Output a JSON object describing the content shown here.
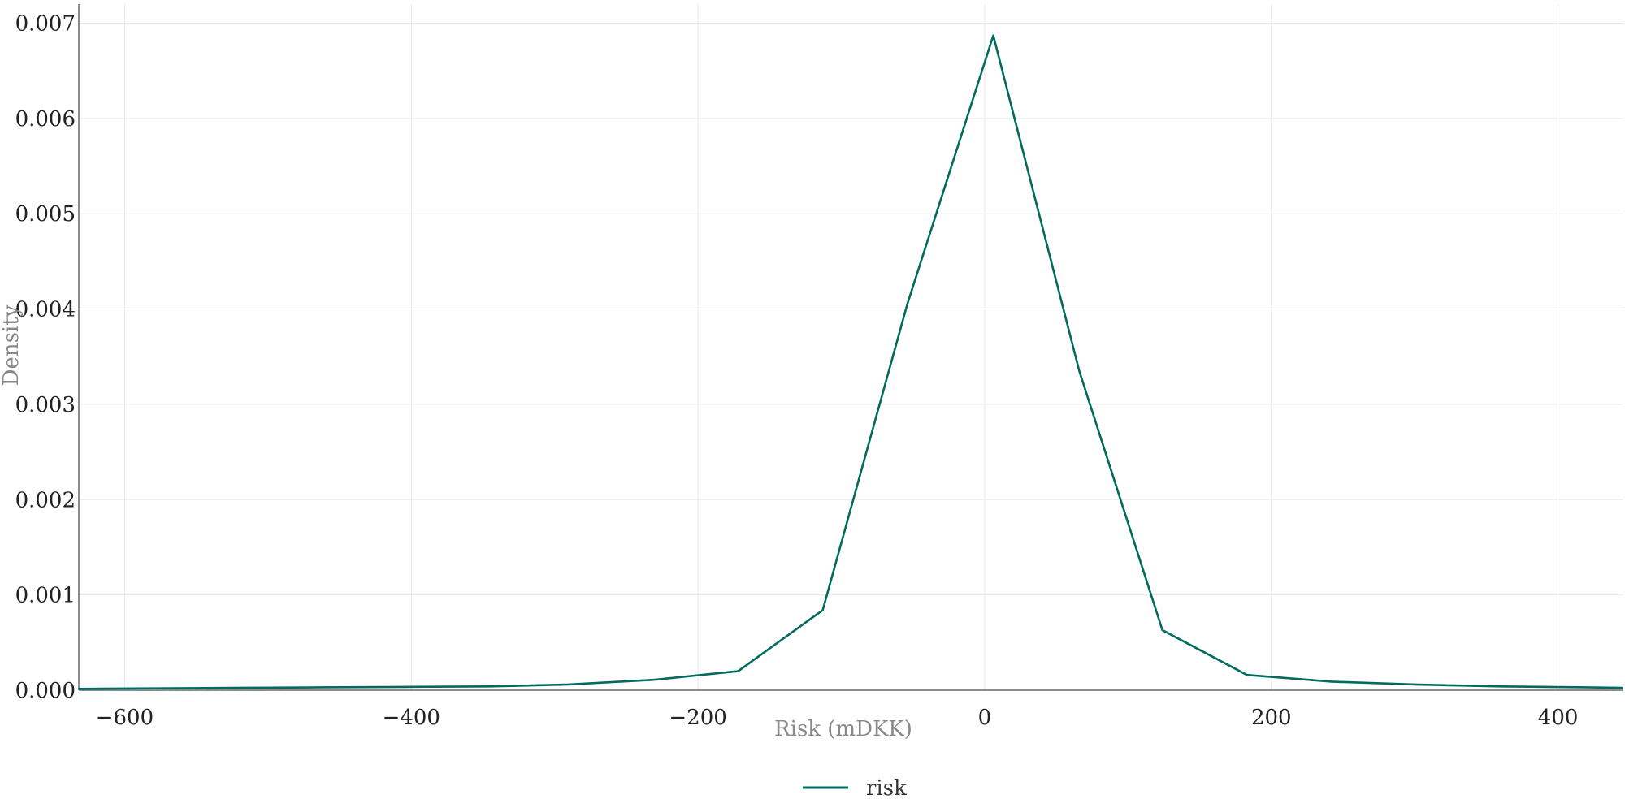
{
  "chart_data": {
    "type": "line",
    "title": "",
    "xlabel": "Risk (mDKK)",
    "ylabel": "Density",
    "xlim": [
      -632,
      445
    ],
    "ylim": [
      0,
      0.0072
    ],
    "x_ticks": [
      -600,
      -400,
      -200,
      0,
      200,
      400
    ],
    "x_tick_labels": [
      "−600",
      "−400",
      "−200",
      "0",
      "200",
      "400"
    ],
    "y_ticks": [
      0,
      0.001,
      0.002,
      0.003,
      0.004,
      0.005,
      0.006,
      0.007
    ],
    "y_tick_labels": [
      "0.000",
      "0.001",
      "0.002",
      "0.003",
      "0.004",
      "0.005",
      "0.006",
      "0.007"
    ],
    "grid": true,
    "legend_position": "bottom-center",
    "series": [
      {
        "name": "risk",
        "color": "#006b5e",
        "x": [
          -632,
          -525,
          -465,
          -405,
          -345,
          -290,
          -230,
          -172,
          -113,
          -54,
          6,
          66,
          124,
          183,
          242,
          300,
          360,
          420,
          445
        ],
        "y": [
          1.5e-05,
          2.5e-05,
          3e-05,
          3.5e-05,
          4e-05,
          6e-05,
          0.00011,
          0.0002,
          0.00084,
          0.00405,
          0.00687,
          0.00335,
          0.00063,
          0.00016,
          9e-05,
          6e-05,
          4e-05,
          3e-05,
          2.5e-05
        ]
      }
    ]
  }
}
